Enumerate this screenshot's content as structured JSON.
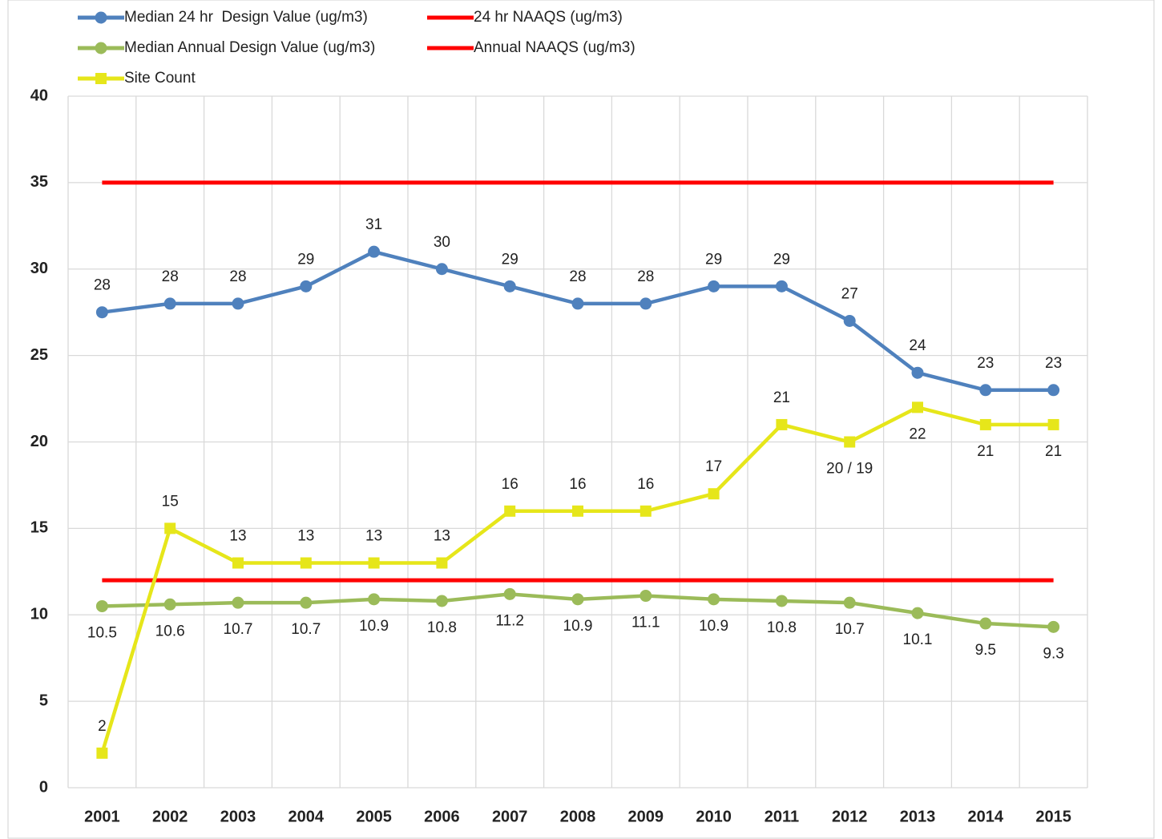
{
  "chart_data": {
    "type": "line",
    "categories": [
      "2001",
      "2002",
      "2003",
      "2004",
      "2005",
      "2006",
      "2007",
      "2008",
      "2009",
      "2010",
      "2011",
      "2012",
      "2013",
      "2014",
      "2015"
    ],
    "series": [
      {
        "name": "Median 24 hr  Design Value (ug/m3)",
        "color": "#4f81bd",
        "marker": "circle",
        "values": [
          27.5,
          28,
          28,
          29,
          31,
          30,
          29,
          28,
          28,
          29,
          29,
          27,
          24,
          23,
          23
        ],
        "value_labels": [
          "28",
          "28",
          "28",
          "29",
          "31",
          "30",
          "29",
          "28",
          "28",
          "29",
          "29",
          "27",
          "24",
          "23",
          "23"
        ]
      },
      {
        "name": "24 hr NAAQS (ug/m3)",
        "color": "#ff0000",
        "values": [
          35,
          35,
          35,
          35,
          35,
          35,
          35,
          35,
          35,
          35,
          35,
          35,
          35,
          35,
          35
        ]
      },
      {
        "name": "Median Annual Design Value (ug/m3)",
        "color": "#9bbb59",
        "marker": "circle",
        "values": [
          10.5,
          10.6,
          10.7,
          10.7,
          10.9,
          10.8,
          11.2,
          10.9,
          11.1,
          10.9,
          10.8,
          10.7,
          10.1,
          9.5,
          9.3
        ]
      },
      {
        "name": "Annual NAAQS (ug/m3)",
        "color": "#ff0000",
        "values": [
          12,
          12,
          12,
          12,
          12,
          12,
          12,
          12,
          12,
          12,
          12,
          12,
          12,
          12,
          12
        ]
      },
      {
        "name": "Site Count",
        "color": "#e6e61a",
        "marker": "square",
        "values": [
          2,
          15,
          13,
          13,
          13,
          13,
          16,
          16,
          16,
          17,
          21,
          20,
          22,
          21,
          21
        ],
        "value_labels": [
          "2",
          "15",
          "13",
          "13",
          "13",
          "13",
          "16",
          "16",
          "16",
          "17",
          "21",
          "20 / 19",
          "22",
          "21",
          "21"
        ]
      }
    ],
    "ylim": [
      0,
      40
    ],
    "yticks": [
      0,
      5,
      10,
      15,
      20,
      25,
      30,
      35,
      40
    ],
    "grid": true
  }
}
